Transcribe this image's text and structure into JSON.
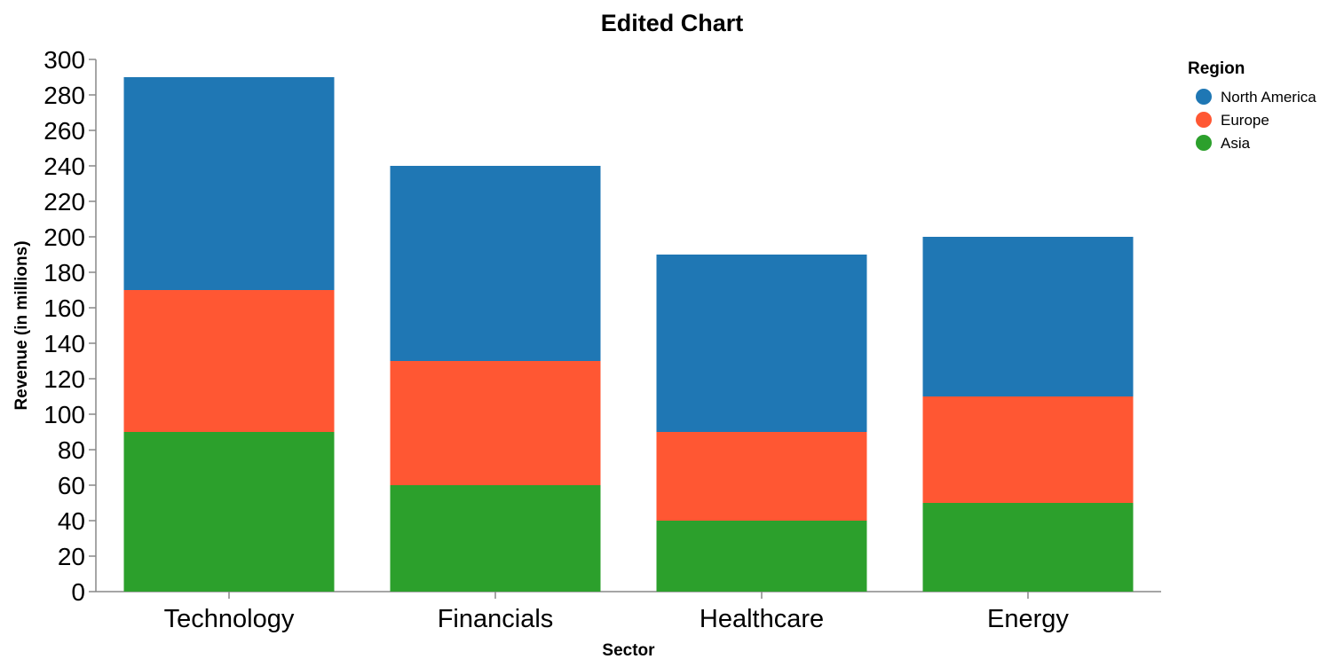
{
  "chart_data": {
    "type": "bar",
    "stacked": true,
    "title": "Edited Chart",
    "xlabel": "Sector",
    "ylabel": "Revenue (in millions)",
    "ylim": [
      0,
      300
    ],
    "yticks": [
      0,
      20,
      40,
      60,
      80,
      100,
      120,
      140,
      160,
      180,
      200,
      220,
      240,
      260,
      280,
      300
    ],
    "categories": [
      "Technology",
      "Financials",
      "Healthcare",
      "Energy"
    ],
    "series": [
      {
        "name": "Asia",
        "color": "#2ca02c",
        "values": [
          90,
          60,
          40,
          50
        ]
      },
      {
        "name": "Europe",
        "color": "#ff5733",
        "values": [
          80,
          70,
          50,
          60
        ]
      },
      {
        "name": "North America",
        "color": "#1f77b4",
        "values": [
          120,
          110,
          100,
          90
        ]
      }
    ],
    "legend": {
      "title": "Region",
      "placement": "top-right",
      "entries": [
        {
          "label": "North America",
          "color": "#1f77b4"
        },
        {
          "label": "Europe",
          "color": "#ff5733"
        },
        {
          "label": "Asia",
          "color": "#2ca02c"
        }
      ]
    },
    "grid": false
  }
}
